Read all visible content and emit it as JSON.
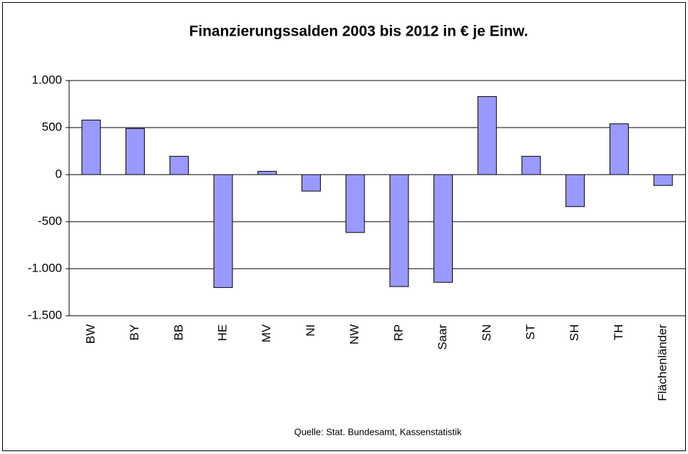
{
  "chart_data": {
    "type": "bar",
    "title": "Finanzierungssalden 2003 bis 2012 in € je Einw.",
    "categories": [
      "BW",
      "BY",
      "BB",
      "HE",
      "MV",
      "NI",
      "NW",
      "RP",
      "Saar",
      "SN",
      "ST",
      "SH",
      "TH",
      "Flächenländer"
    ],
    "values": [
      580,
      490,
      195,
      -1200,
      35,
      -175,
      -615,
      -1190,
      -1145,
      830,
      195,
      -340,
      540,
      -115
    ],
    "color": "#9999ff",
    "ylim": [
      -1500,
      1000
    ],
    "yticks": [
      {
        "value": -1500,
        "label": "-1.500"
      },
      {
        "value": -1000,
        "label": "-1.000"
      },
      -500,
      0,
      500,
      {
        "value": 1000,
        "label": "1.000"
      }
    ],
    "grid": true,
    "source": "Quelle: Stat. Bundesamt, Kassenstatistik"
  }
}
